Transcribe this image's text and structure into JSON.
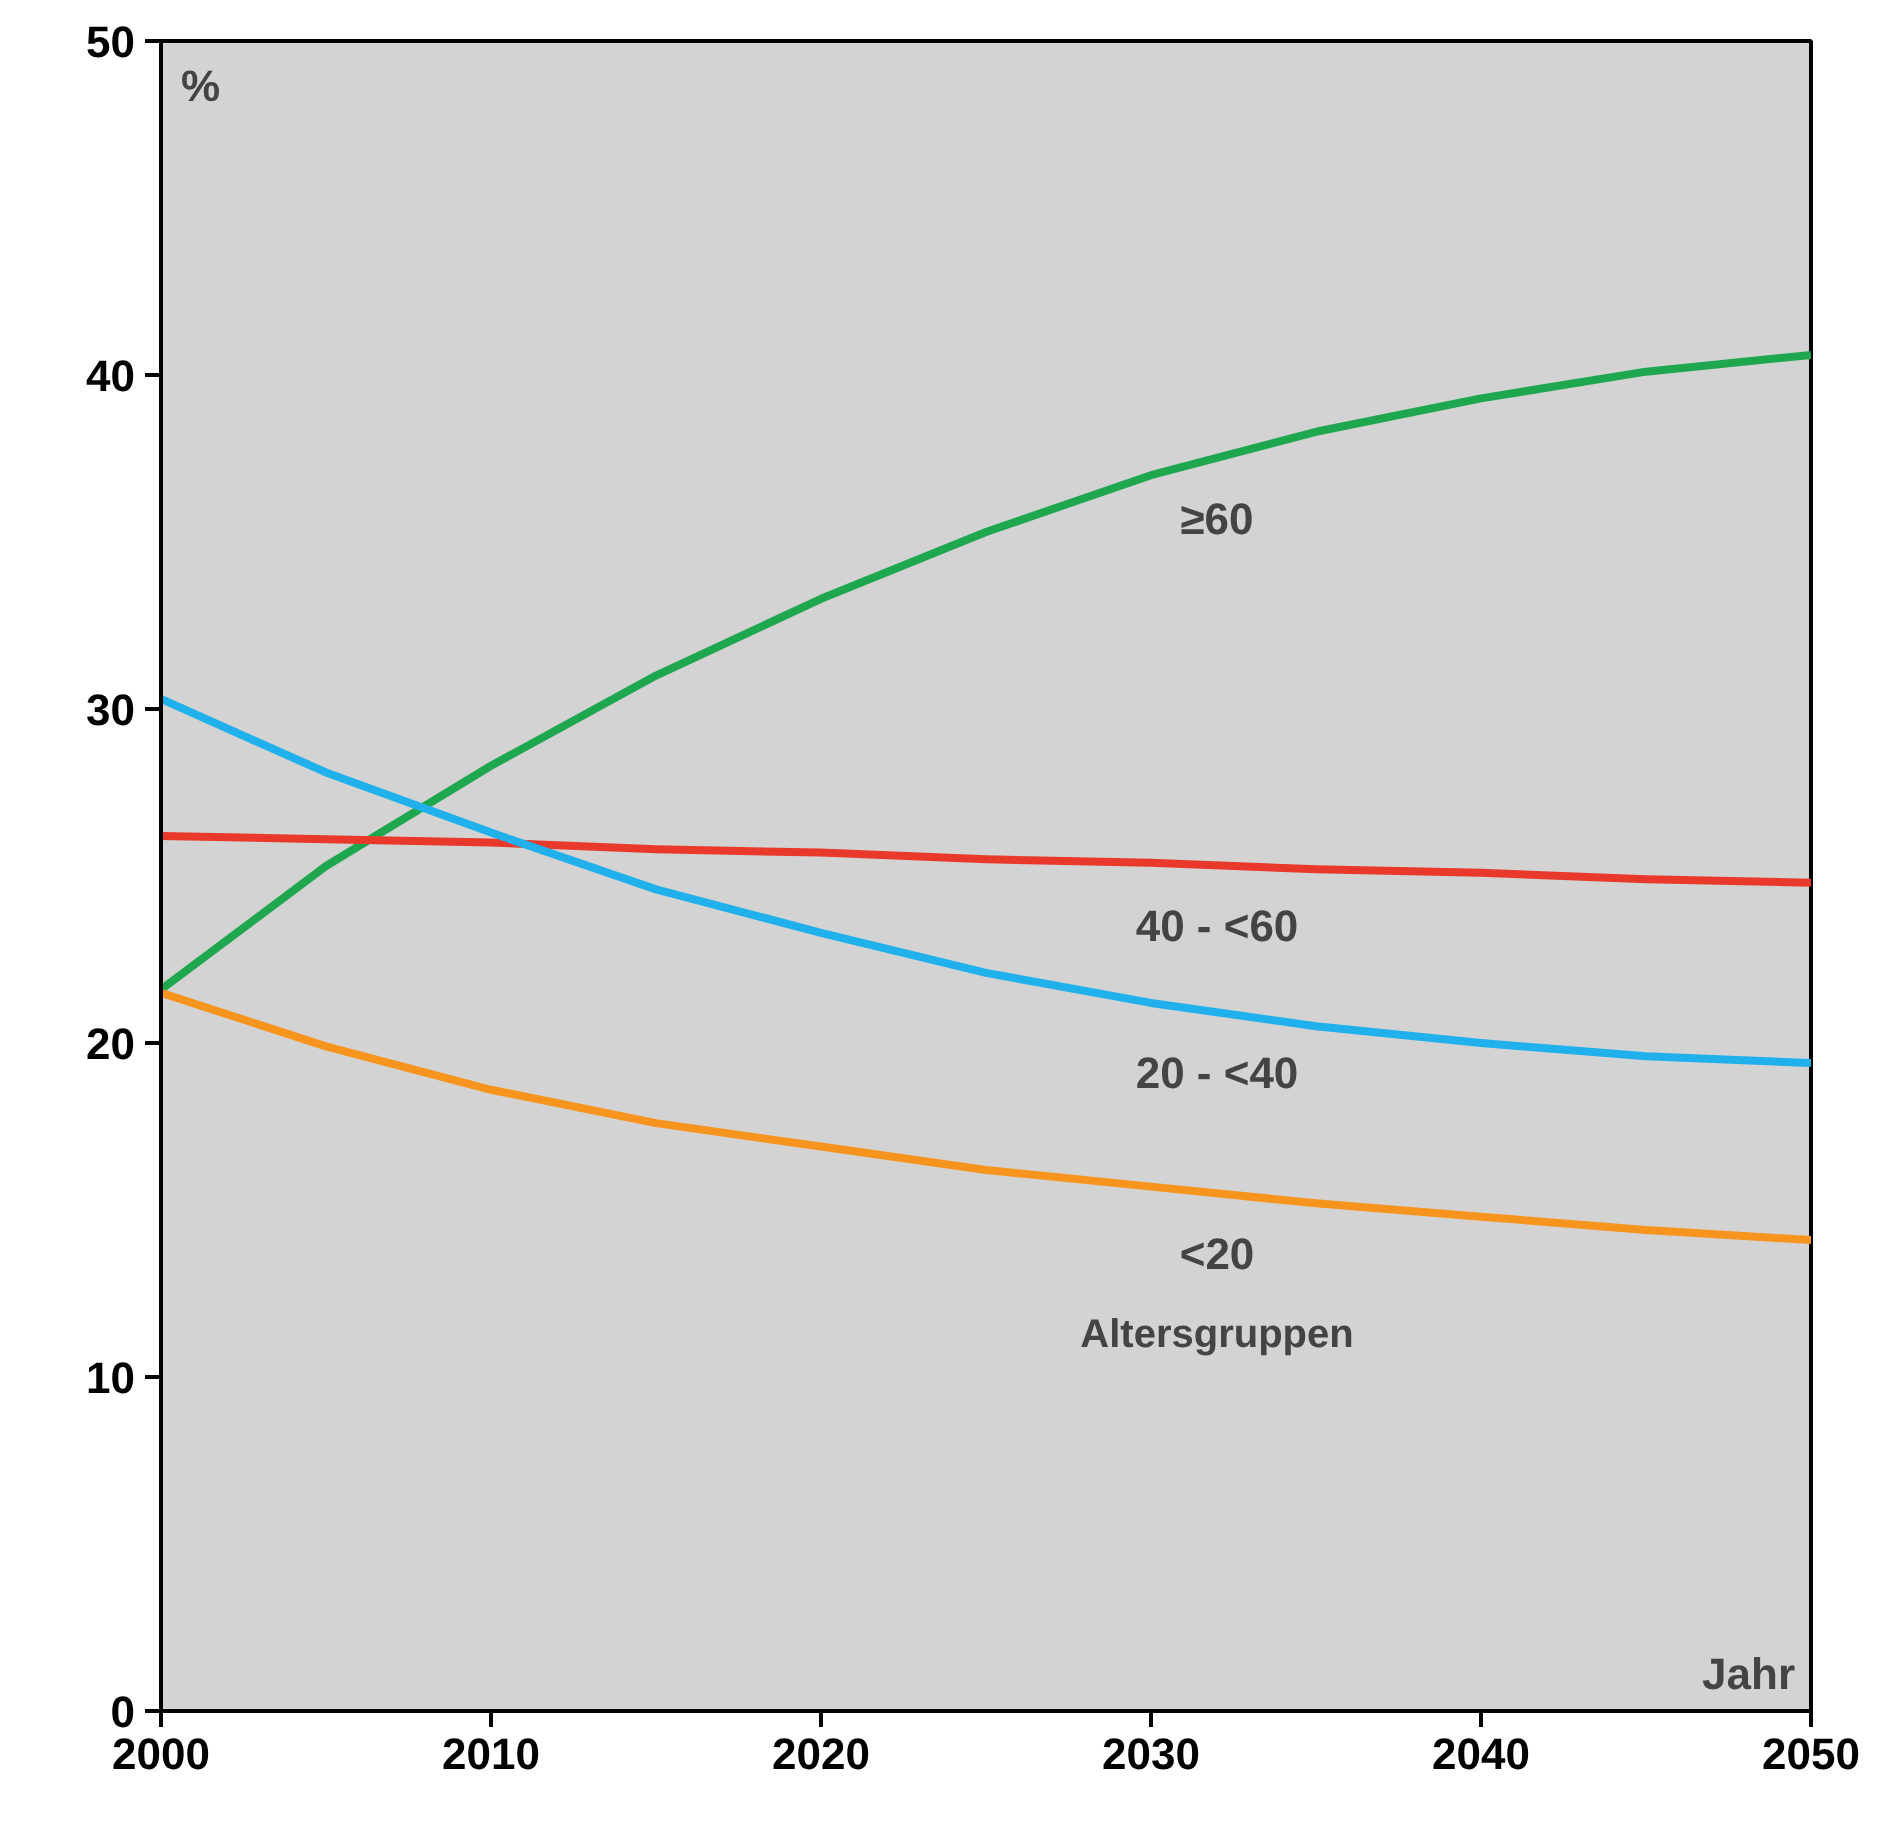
{
  "chart_data": {
    "type": "line",
    "xlabel": "Jahr",
    "ylabel": "%",
    "x": [
      2000,
      2005,
      2010,
      2015,
      2020,
      2025,
      2030,
      2035,
      2040,
      2045,
      2050
    ],
    "series": [
      {
        "name": "≥60",
        "color": "#1fa74f",
        "values": [
          21.6,
          25.3,
          28.3,
          31,
          33.3,
          35.3,
          37,
          38.3,
          39.3,
          40.1,
          40.6
        ]
      },
      {
        "name": "40 - <60",
        "color": "#e8392b",
        "values": [
          26.2,
          26.1,
          26,
          25.8,
          25.7,
          25.5,
          25.4,
          25.2,
          25.1,
          24.9,
          24.8
        ]
      },
      {
        "name": "20 - <40",
        "color": "#20b0ec",
        "values": [
          30.3,
          28.1,
          26.3,
          24.6,
          23.3,
          22.1,
          21.2,
          20.5,
          20,
          19.6,
          19.4
        ]
      },
      {
        "name": "<20",
        "color": "#f7941d",
        "values": [
          21.5,
          19.9,
          18.6,
          17.6,
          16.9,
          16.2,
          15.7,
          15.2,
          14.8,
          14.4,
          14.1
        ]
      }
    ],
    "annotations": [
      "Altersgruppen"
    ],
    "xlim": [
      2000,
      2050
    ],
    "ylim": [
      0,
      50
    ],
    "xticks": [
      2000,
      2010,
      2020,
      2030,
      2040,
      2050
    ],
    "yticks": [
      0,
      10,
      20,
      30,
      40,
      50
    ],
    "grid": false,
    "marker": "none",
    "line_style": "solid"
  }
}
